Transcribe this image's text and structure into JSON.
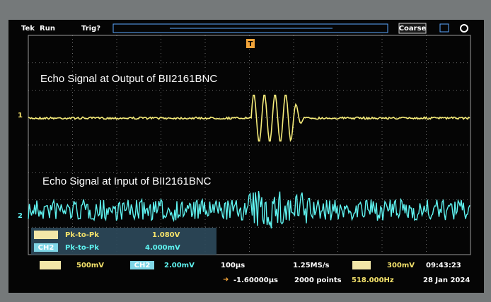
{
  "top_bar": {
    "brand": "Tek",
    "status": "Run",
    "trigger": "Trig?",
    "knob_mode": "Coarse"
  },
  "channel_markers": {
    "ch1": "1",
    "ch2": "2",
    "trigger": "T"
  },
  "annotations": {
    "upper": "Echo Signal at Output of BII2161BNC",
    "lower": "Echo Signal at Input of BII2161BNC"
  },
  "measurements": [
    {
      "name": "Pk-to-Pk",
      "value": "1.080V"
    },
    {
      "channel": "CH2",
      "name": "Pk-to-Pk",
      "value": "4.000mV"
    }
  ],
  "status_bar": {
    "ch1_scale": "500mV",
    "ch2_label": "CH2",
    "ch2_scale": "2.00mV",
    "time_scale": "100µs",
    "position": "-1.60000µs",
    "sample_rate": "1.25MS/s",
    "record_length": "2000 points",
    "trigger_level": "300mV",
    "frequency": "518.000Hz",
    "time": "09:43:23",
    "date": "28 Jan 2024"
  }
}
